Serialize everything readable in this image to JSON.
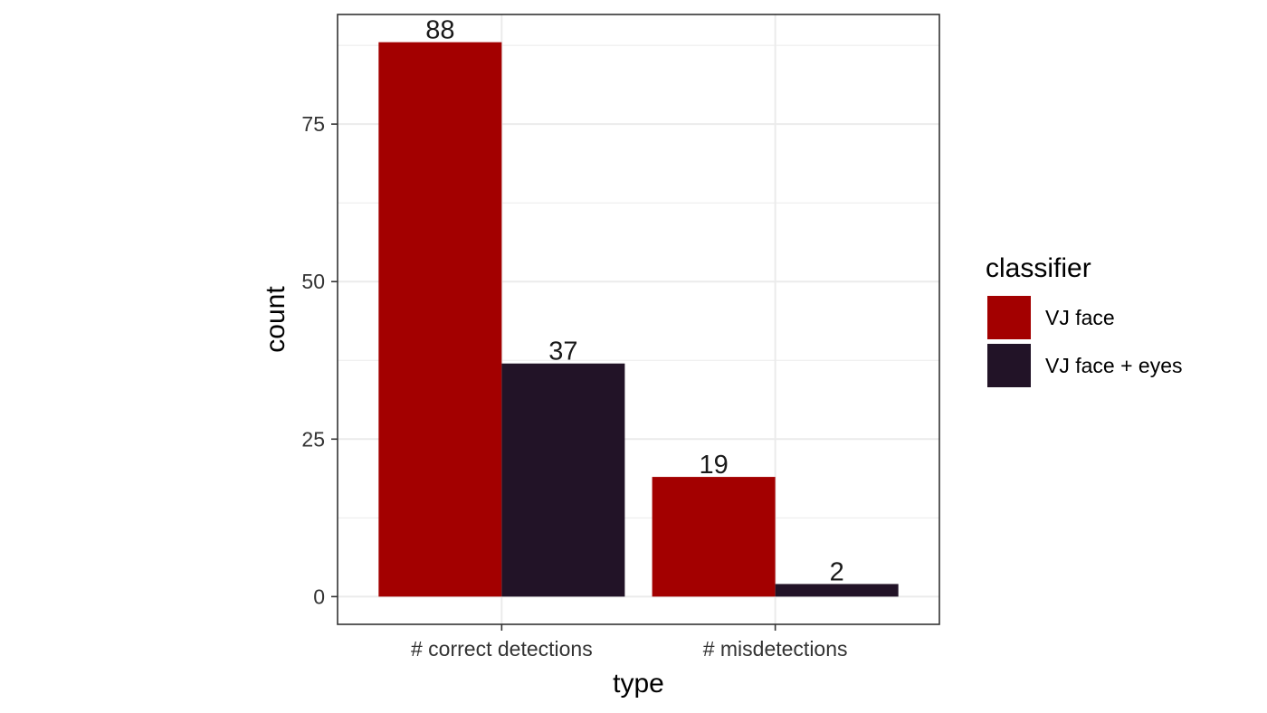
{
  "chart_data": {
    "type": "bar",
    "categories": [
      "# correct detections",
      "# misdetections"
    ],
    "series": [
      {
        "name": "VJ face",
        "values": [
          88,
          19
        ],
        "color": "#a30000"
      },
      {
        "name": "VJ face + eyes",
        "values": [
          37,
          2
        ],
        "color": "#221327"
      }
    ],
    "xlabel": "type",
    "ylabel": "count",
    "ylim": [
      -4.4,
      92.4
    ],
    "yticks": [
      0,
      25,
      50,
      75
    ],
    "legend": {
      "title": "classifier",
      "position": "right"
    },
    "grid": true,
    "theme": "bw"
  }
}
